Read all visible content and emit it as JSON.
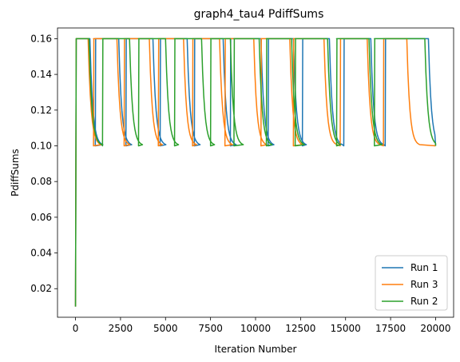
{
  "chart_data": {
    "type": "line",
    "title": "graph4_tau4 PdiffSums",
    "xlabel": "Iteration Number",
    "ylabel": "PdiffSums",
    "xlim": [
      -1000,
      21000
    ],
    "ylim": [
      0.004,
      0.166
    ],
    "xticks": [
      0,
      2500,
      5000,
      7500,
      10000,
      12500,
      15000,
      17500,
      20000
    ],
    "yticks": [
      0.02,
      0.04,
      0.06,
      0.08,
      0.1,
      0.12,
      0.14,
      0.16
    ],
    "ytick_labels": [
      "0.02",
      "0.04",
      "0.06",
      "0.08",
      "0.10",
      "0.12",
      "0.14",
      "0.16"
    ],
    "grid": false,
    "legend": {
      "location": "lower right",
      "entries": [
        "Run 1",
        "Run 3",
        "Run 2"
      ]
    },
    "series": [
      {
        "name": "Run 1",
        "color": "#1f77b4",
        "cycles": [
          [
            300,
            800
          ],
          [
            1100,
            2400
          ],
          [
            2800,
            4300
          ],
          [
            4700,
            6200
          ],
          [
            6600,
            8200
          ],
          [
            8600,
            10300
          ],
          [
            10700,
            12100
          ],
          [
            12600,
            14100
          ],
          [
            14900,
            16400
          ],
          [
            17200,
            19600
          ]
        ],
        "decay_end": 20000
      },
      {
        "name": "Run 3",
        "color": "#ff7f0e",
        "cycles": [
          [
            200,
            700
          ],
          [
            1000,
            2300
          ],
          [
            2700,
            4100
          ],
          [
            4600,
            6000
          ],
          [
            6500,
            8000
          ],
          [
            8300,
            9900
          ],
          [
            10300,
            11900
          ],
          [
            12100,
            13800
          ],
          [
            14700,
            16200
          ],
          [
            17100,
            18400
          ]
        ],
        "decay_end": 20000
      },
      {
        "name": "Run 2",
        "color": "#2ca02c",
        "cycles": [
          [
            250,
            750
          ],
          [
            1500,
            3000
          ],
          [
            3500,
            5000
          ],
          [
            5500,
            7000
          ],
          [
            7500,
            8600
          ],
          [
            8800,
            10200
          ],
          [
            10600,
            12000
          ],
          [
            12200,
            14000
          ],
          [
            14500,
            16300
          ],
          [
            16600,
            19400
          ]
        ],
        "decay_end": 20000
      }
    ],
    "level_high": 0.16,
    "level_low": 0.1,
    "start_value": 0.01
  }
}
